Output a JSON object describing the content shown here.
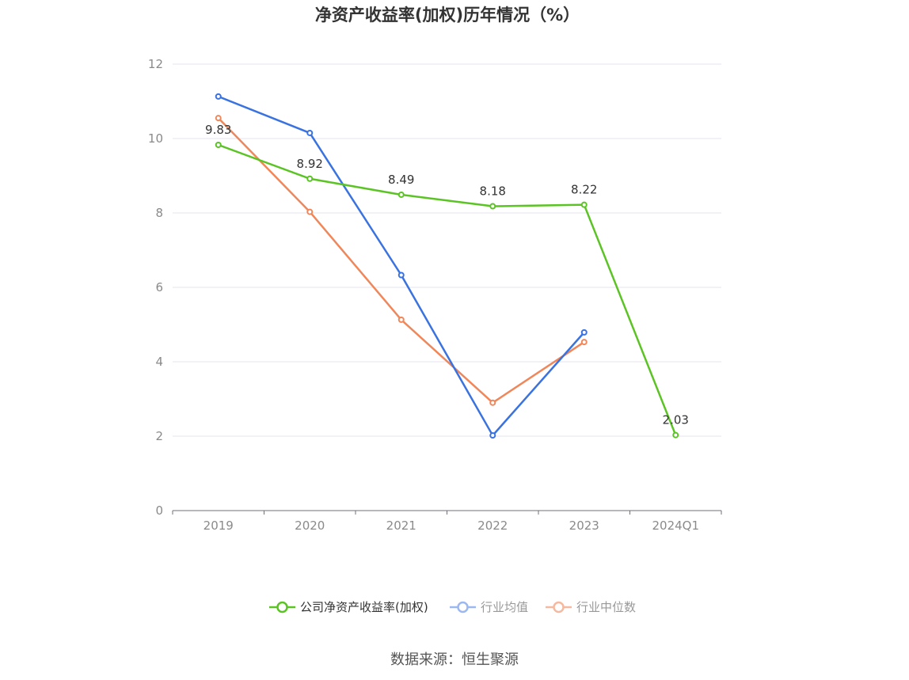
{
  "chart_data": {
    "type": "line",
    "title": "净资产收益率(加权)历年情况（%）",
    "categories": [
      "2019",
      "2020",
      "2021",
      "2022",
      "2023",
      "2024Q1"
    ],
    "ylim": [
      0,
      12
    ],
    "yticks": [
      0,
      2,
      4,
      6,
      8,
      10,
      12
    ],
    "grid": true,
    "legend_position": "bottom",
    "series": [
      {
        "name": "公司净资产收益率(加权)",
        "color": "#5bc424",
        "values": [
          9.83,
          8.92,
          8.49,
          8.18,
          8.22,
          2.03
        ],
        "labels": [
          "9.83",
          "8.92",
          "8.49",
          "8.18",
          "8.22",
          "2.03"
        ]
      },
      {
        "name": "行业均值",
        "color": "#3a73e0",
        "values": [
          11.13,
          10.15,
          6.33,
          2.02,
          4.79,
          null
        ]
      },
      {
        "name": "行业中位数",
        "color": "#f0875a",
        "values": [
          10.55,
          8.03,
          5.13,
          2.9,
          4.53,
          null
        ]
      }
    ]
  },
  "legend": {
    "colors": [
      "#5bc424",
      "#9cb8f0",
      "#f5b9a0"
    ],
    "text_colors": [
      "#333333",
      "#999999",
      "#999999"
    ]
  },
  "source": "数据来源：恒生聚源"
}
